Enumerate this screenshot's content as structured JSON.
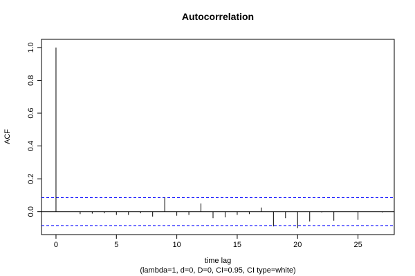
{
  "chart_data": {
    "type": "bar",
    "title": "Autocorrelation",
    "xlabel": "time lag",
    "ylabel": "ACF",
    "subtitle": "(lambda=1, d=0, D=0, CI=0.95, CI type=white)",
    "xlim": [
      -1.2,
      28
    ],
    "ylim": [
      -0.14,
      1.05
    ],
    "xticks": [
      0,
      5,
      10,
      15,
      20,
      25
    ],
    "yticks": [
      0.0,
      0.2,
      0.4,
      0.6,
      0.8,
      1.0
    ],
    "ytick_labels": [
      "0.0",
      "0.2",
      "0.4",
      "0.6",
      "0.8",
      "1.0"
    ],
    "xtick_labels": [
      "0",
      "5",
      "10",
      "15",
      "20",
      "25"
    ],
    "ci_bounds": [
      0.085,
      -0.085
    ],
    "ci_color": "#0000ff",
    "bar_color": "#000000",
    "lags": [
      0,
      1,
      2,
      3,
      4,
      5,
      6,
      7,
      8,
      9,
      10,
      11,
      12,
      13,
      14,
      15,
      16,
      17,
      18,
      19,
      20,
      21,
      22,
      23,
      24,
      25,
      26,
      27
    ],
    "values": [
      1.0,
      0.0,
      -0.015,
      -0.012,
      -0.01,
      -0.02,
      -0.02,
      -0.01,
      -0.03,
      0.085,
      -0.025,
      -0.02,
      0.05,
      -0.04,
      -0.035,
      -0.02,
      -0.015,
      0.025,
      -0.09,
      -0.04,
      -0.1,
      -0.06,
      -0.005,
      -0.055,
      0.0,
      -0.05,
      0.0,
      -0.005
    ]
  }
}
